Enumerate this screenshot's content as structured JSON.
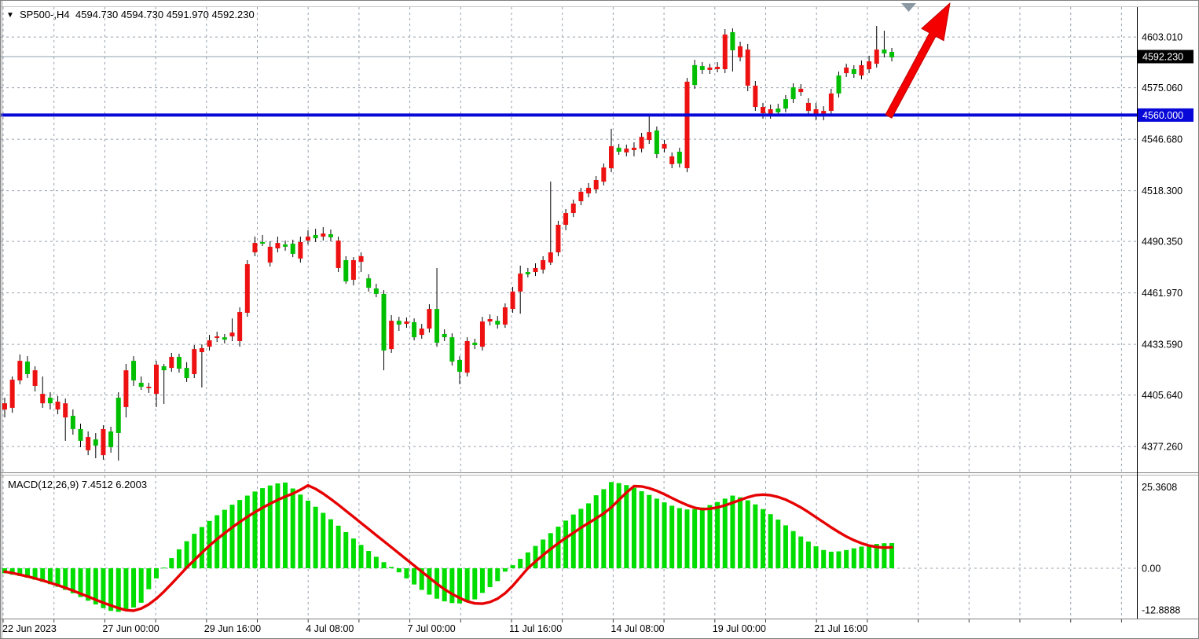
{
  "window": {
    "symbol_marker": "▼",
    "title": "SP500-,H4",
    "title_quote": "4594.730 4594.730 4591.970 4592.230"
  },
  "indicator_label": "MACD(12,26,9) 7.4512 6.2003",
  "price_axis": {
    "labels": [
      "4603.010",
      "4575.060",
      "4546.680",
      "4518.300",
      "4490.350",
      "4461.970",
      "4433.590",
      "4405.640",
      "4377.260"
    ],
    "current_price_badge": "4592.230",
    "level_badge": "4560.000"
  },
  "macd_axis": {
    "labels": [
      "25.3608",
      "0.00",
      "-12.8888"
    ]
  },
  "time_axis": {
    "labels": [
      "22 Jun 2023",
      "27 Jun 00:00",
      "29 Jun 16:00",
      "4 Jul 08:00",
      "7 Jul 00:00",
      "11 Jul 16:00",
      "14 Jul 08:00",
      "19 Jul 00:00",
      "21 Jul 16:00"
    ]
  },
  "colors": {
    "bull": "#00bf00",
    "bear": "#ee1111",
    "wick": "#000000",
    "macd_bar": "#00dd00",
    "signal_line": "#e60000",
    "level_line": "#0808d8",
    "current_price_line": "#8fa0ad",
    "grid": "#97a1ad",
    "arrow": "#f40000",
    "arrow_edge": "#c00000",
    "badge_current_bg": "#000000",
    "badge_level_bg": "#0808d8",
    "badge_text": "#ffffff",
    "axis_text": "#000000",
    "marker_triangle": "#8a98a4"
  },
  "chart_data": {
    "type": "candlestick",
    "symbol": "SP500-",
    "timeframe": "H4",
    "title_quote": {
      "open": 4594.73,
      "high": 4594.73,
      "low": 4591.97,
      "close": 4592.23
    },
    "main": {
      "ylabel": "price",
      "ylim": [
        4363,
        4619
      ],
      "grid": true,
      "current_price": 4592.23,
      "level_line": 4560.0,
      "candles": [
        [
          4401.1,
          4404.2,
          4393.3,
          4397.7
        ],
        [
          4414.1,
          4415.9,
          4395.9,
          4398.6
        ],
        [
          4424.5,
          4428.0,
          4411.6,
          4413.7
        ],
        [
          4417.2,
          4427.1,
          4415.0,
          4424.1
        ],
        [
          4419.3,
          4421.5,
          4407.6,
          4410.7
        ],
        [
          4406.3,
          4415.9,
          4398.6,
          4401.1
        ],
        [
          4401.1,
          4407.2,
          4397.7,
          4404.2
        ],
        [
          4402.0,
          4405.1,
          4395.1,
          4397.7
        ],
        [
          4401.1,
          4403.7,
          4380.4,
          4393.3
        ],
        [
          4386.9,
          4397.7,
          4383.8,
          4394.2
        ],
        [
          4380.4,
          4389.9,
          4376.9,
          4386.9
        ],
        [
          4382.5,
          4385.6,
          4372.5,
          4375.2
        ],
        [
          4377.8,
          4384.7,
          4370.8,
          4381.2
        ],
        [
          4386.9,
          4389.0,
          4370.0,
          4372.5
        ],
        [
          4376.9,
          4388.2,
          4373.9,
          4385.6
        ],
        [
          4384.7,
          4407.2,
          4369.5,
          4404.2
        ],
        [
          4419.3,
          4422.8,
          4393.3,
          4399.0
        ],
        [
          4413.7,
          4427.1,
          4410.7,
          4424.5
        ],
        [
          4410.2,
          4415.9,
          4408.5,
          4412.4
        ],
        [
          4410.2,
          4412.4,
          4406.8,
          4409.4
        ],
        [
          4422.4,
          4424.5,
          4399.0,
          4406.3
        ],
        [
          4419.3,
          4422.8,
          4400.7,
          4421.5
        ],
        [
          4426.7,
          4428.9,
          4418.5,
          4420.6
        ],
        [
          4420.2,
          4428.4,
          4418.0,
          4426.7
        ],
        [
          4415.0,
          4423.7,
          4412.9,
          4420.6
        ],
        [
          4431.0,
          4433.2,
          4415.0,
          4417.2
        ],
        [
          4431.5,
          4433.6,
          4409.8,
          4429.3
        ],
        [
          4435.8,
          4438.8,
          4430.2,
          4432.3
        ],
        [
          4438.0,
          4440.6,
          4434.9,
          4437.1
        ],
        [
          4436.2,
          4439.3,
          4434.1,
          4437.5
        ],
        [
          4440.1,
          4447.9,
          4435.4,
          4438.0
        ],
        [
          4451.4,
          4454.0,
          4432.3,
          4435.4
        ],
        [
          4477.8,
          4480.0,
          4448.8,
          4451.0
        ],
        [
          4489.5,
          4493.0,
          4482.2,
          4484.3
        ],
        [
          4489.1,
          4493.9,
          4487.8,
          4490.0
        ],
        [
          4487.4,
          4490.4,
          4476.5,
          4478.7
        ],
        [
          4489.5,
          4493.0,
          4484.3,
          4486.5
        ],
        [
          4487.4,
          4490.8,
          4485.2,
          4488.7
        ],
        [
          4483.5,
          4491.3,
          4481.7,
          4489.1
        ],
        [
          4490.0,
          4493.0,
          4478.7,
          4480.9
        ],
        [
          4493.0,
          4496.5,
          4488.7,
          4490.8
        ],
        [
          4492.1,
          4497.3,
          4490.0,
          4493.9
        ],
        [
          4494.7,
          4498.2,
          4490.8,
          4493.0
        ],
        [
          4492.6,
          4496.9,
          4490.4,
          4494.3
        ],
        [
          4490.8,
          4493.0,
          4473.5,
          4475.7
        ],
        [
          4468.3,
          4482.2,
          4467.0,
          4480.0
        ],
        [
          4480.0,
          4481.7,
          4466.1,
          4469.2
        ],
        [
          4482.2,
          4484.3,
          4473.5,
          4479.1
        ],
        [
          4464.8,
          4472.2,
          4462.7,
          4470.0
        ],
        [
          4461.4,
          4467.0,
          4459.6,
          4464.4
        ],
        [
          4430.2,
          4463.5,
          4419.3,
          4461.4
        ],
        [
          4446.6,
          4449.7,
          4428.9,
          4431.0
        ],
        [
          4444.5,
          4448.8,
          4441.0,
          4446.6
        ],
        [
          4446.2,
          4448.4,
          4442.7,
          4444.9
        ],
        [
          4437.5,
          4447.9,
          4435.8,
          4445.8
        ],
        [
          4442.3,
          4444.9,
          4436.7,
          4438.8
        ],
        [
          4453.1,
          4455.7,
          4440.1,
          4442.3
        ],
        [
          4434.5,
          4475.7,
          4432.3,
          4453.1
        ],
        [
          4437.5,
          4441.9,
          4435.4,
          4439.3
        ],
        [
          4424.1,
          4439.7,
          4421.9,
          4437.5
        ],
        [
          4418.5,
          4427.1,
          4411.6,
          4425.0
        ],
        [
          4435.4,
          4437.5,
          4415.9,
          4418.0
        ],
        [
          4433.2,
          4436.7,
          4431.0,
          4434.5
        ],
        [
          4446.2,
          4448.8,
          4430.2,
          4432.3
        ],
        [
          4447.5,
          4450.1,
          4444.0,
          4446.2
        ],
        [
          4444.5,
          4449.2,
          4442.3,
          4446.6
        ],
        [
          4454.0,
          4456.2,
          4442.7,
          4444.5
        ],
        [
          4462.7,
          4465.3,
          4451.0,
          4453.1
        ],
        [
          4472.6,
          4477.0,
          4450.5,
          4462.7
        ],
        [
          4472.2,
          4475.7,
          4470.5,
          4473.5
        ],
        [
          4475.7,
          4478.3,
          4471.3,
          4473.5
        ],
        [
          4480.0,
          4482.2,
          4472.6,
          4474.8
        ],
        [
          4484.3,
          4523.3,
          4477.4,
          4478.7
        ],
        [
          4499.5,
          4501.7,
          4482.2,
          4484.3
        ],
        [
          4506.0,
          4508.2,
          4496.5,
          4499.5
        ],
        [
          4511.2,
          4513.4,
          4503.8,
          4506.0
        ],
        [
          4517.7,
          4519.9,
          4510.3,
          4512.5
        ],
        [
          4519.9,
          4522.5,
          4514.7,
          4516.8
        ],
        [
          4524.2,
          4526.4,
          4516.8,
          4519.0
        ],
        [
          4531.1,
          4533.3,
          4521.2,
          4523.3
        ],
        [
          4542.8,
          4552.4,
          4528.5,
          4530.7
        ],
        [
          4539.8,
          4544.1,
          4538.1,
          4542.0
        ],
        [
          4541.5,
          4543.7,
          4537.2,
          4539.4
        ],
        [
          4542.0,
          4545.0,
          4537.2,
          4540.7
        ],
        [
          4548.0,
          4550.2,
          4539.4,
          4541.5
        ],
        [
          4550.6,
          4560.2,
          4544.1,
          4546.3
        ],
        [
          4538.5,
          4553.7,
          4536.3,
          4551.5
        ],
        [
          4544.1,
          4546.3,
          4539.4,
          4541.5
        ],
        [
          4537.2,
          4539.4,
          4530.7,
          4532.9
        ],
        [
          4533.3,
          4542.0,
          4531.1,
          4539.8
        ],
        [
          4578.4,
          4580.5,
          4528.5,
          4530.7
        ],
        [
          4576.6,
          4590.5,
          4574.5,
          4587.5
        ],
        [
          4584.9,
          4589.2,
          4582.7,
          4587.0
        ],
        [
          4586.2,
          4588.3,
          4582.7,
          4584.9
        ],
        [
          4586.6,
          4589.2,
          4583.6,
          4585.3
        ],
        [
          4604.4,
          4607.4,
          4583.1,
          4585.3
        ],
        [
          4595.7,
          4607.8,
          4584.0,
          4605.7
        ],
        [
          4597.9,
          4600.5,
          4589.6,
          4591.8
        ],
        [
          4596.1,
          4599.2,
          4573.2,
          4576.2
        ],
        [
          4576.2,
          4578.8,
          4562.3,
          4564.5
        ],
        [
          4564.5,
          4566.7,
          4558.0,
          4561.0
        ],
        [
          4563.2,
          4565.8,
          4558.0,
          4560.2
        ],
        [
          4561.5,
          4566.2,
          4559.3,
          4563.6
        ],
        [
          4563.6,
          4571.0,
          4561.5,
          4568.8
        ],
        [
          4568.8,
          4577.5,
          4566.7,
          4575.3
        ],
        [
          4574.5,
          4577.1,
          4570.6,
          4572.7
        ],
        [
          4566.7,
          4569.3,
          4559.7,
          4562.3
        ],
        [
          4563.2,
          4566.7,
          4557.1,
          4560.2
        ],
        [
          4562.3,
          4564.9,
          4557.1,
          4559.3
        ],
        [
          4571.9,
          4574.5,
          4559.7,
          4562.3
        ],
        [
          4571.9,
          4584.0,
          4569.7,
          4581.8
        ],
        [
          4586.2,
          4588.3,
          4581.0,
          4583.1
        ],
        [
          4582.7,
          4587.5,
          4580.5,
          4585.3
        ],
        [
          4587.5,
          4590.1,
          4579.7,
          4581.8
        ],
        [
          4589.6,
          4592.7,
          4583.1,
          4585.3
        ],
        [
          4596.1,
          4609.1,
          4586.2,
          4588.3
        ],
        [
          4594.0,
          4606.5,
          4591.8,
          4596.1
        ],
        [
          4591.8,
          4597.0,
          4589.6,
          4594.8
        ]
      ]
    },
    "macd": {
      "type": "bar+line",
      "params": [
        12,
        26,
        9
      ],
      "last_values": {
        "macd": 7.4512,
        "signal": 6.2003
      },
      "ylim": [
        -14.9,
        27.5
      ],
      "histogram": [
        -1.5,
        -1.9,
        -2.3,
        -2.8,
        -3.4,
        -4.0,
        -4.7,
        -5.5,
        -6.4,
        -7.4,
        -8.5,
        -9.6,
        -10.7,
        -11.8,
        -12.6,
        -12.9,
        -12.5,
        -11.6,
        -10.2,
        -6.2,
        -3.0,
        0.2,
        3.0,
        5.6,
        8.0,
        10.2,
        12.2,
        14.0,
        15.7,
        17.3,
        18.8,
        20.2,
        21.5,
        22.7,
        23.7,
        24.5,
        25.1,
        25.36,
        23.6,
        21.8,
        20.0,
        18.2,
        16.4,
        14.5,
        12.6,
        10.7,
        8.8,
        6.9,
        5.1,
        3.4,
        1.8,
        0.4,
        -1.2,
        -3.0,
        -4.8,
        -6.4,
        -7.8,
        -9.0,
        -9.8,
        -10.3,
        -10.4,
        -10.0,
        -9.2,
        -7.3,
        -5.6,
        -3.8,
        -1.0,
        0.9,
        2.8,
        4.7,
        6.6,
        8.5,
        10.4,
        12.3,
        14.1,
        15.9,
        17.6,
        19.2,
        21.6,
        23.4,
        25.5,
        25.2,
        24.6,
        23.8,
        22.8,
        21.7,
        20.6,
        19.5,
        18.5,
        17.8,
        17.4,
        17.5,
        18.0,
        18.7,
        19.6,
        20.6,
        21.5,
        21.0,
        20.1,
        18.9,
        17.5,
        16.0,
        14.4,
        12.7,
        11.0,
        9.4,
        7.9,
        6.5,
        5.4,
        4.9,
        5.0,
        5.4,
        5.9,
        6.4,
        6.9,
        7.2,
        7.4,
        7.45
      ],
      "signal": [
        -1.0,
        -1.4,
        -1.9,
        -2.4,
        -3.0,
        -3.6,
        -4.3,
        -5.0,
        -5.8,
        -6.6,
        -7.5,
        -8.4,
        -9.3,
        -10.2,
        -11.0,
        -11.8,
        -12.4,
        -12.55,
        -11.9,
        -10.7,
        -9.0,
        -6.9,
        -4.6,
        -2.2,
        0.2,
        2.4,
        4.6,
        6.7,
        8.6,
        10.4,
        12.1,
        13.7,
        15.2,
        16.6,
        17.9,
        19.1,
        20.2,
        21.2,
        22.1,
        23.2,
        24.5,
        23.5,
        22.1,
        20.5,
        18.8,
        17.0,
        15.2,
        13.4,
        11.6,
        9.8,
        8.0,
        6.2,
        4.4,
        2.6,
        0.8,
        -1.0,
        -2.8,
        -4.6,
        -6.2,
        -7.6,
        -8.8,
        -9.8,
        -10.4,
        -10.5,
        -10.0,
        -9.0,
        -7.4,
        -5.2,
        -2.6,
        0.0,
        2.0,
        3.9,
        5.7,
        7.4,
        9.0,
        10.5,
        12.0,
        13.4,
        14.8,
        16.2,
        18.0,
        20.2,
        22.4,
        24.3,
        24.2,
        23.7,
        22.9,
        21.9,
        20.8,
        19.7,
        18.7,
        17.9,
        17.5,
        17.6,
        18.0,
        18.6,
        19.4,
        20.2,
        21.0,
        21.6,
        21.8,
        21.6,
        21.1,
        20.3,
        19.2,
        18.0,
        16.6,
        15.1,
        13.6,
        12.1,
        10.7,
        9.4,
        8.3,
        7.4,
        6.7,
        6.3,
        6.1,
        6.2
      ]
    },
    "annotations": [
      {
        "type": "arrow",
        "direction": "up-right",
        "anchored_at_price": 4560.0,
        "color": "#f40000"
      },
      {
        "type": "marker-triangle-down",
        "position": "top-right"
      }
    ]
  }
}
